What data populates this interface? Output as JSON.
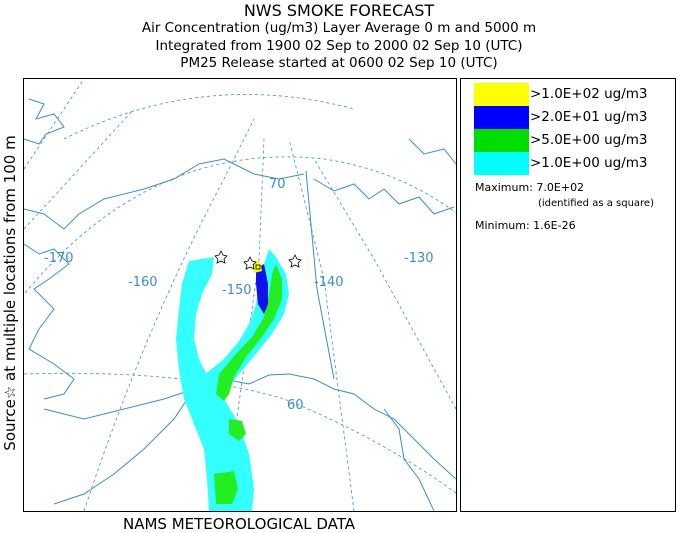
{
  "title": {
    "line1": "NWS SMOKE FORECAST",
    "line2": "Air Concentration (ug/m3) Layer Average    0 m and  5000 m",
    "line3": "Integrated from 1900 02 Sep to 2000 02 Sep 10 (UTC)",
    "line4": "PM25 Release started at 0600 02 Sep 10 (UTC)"
  },
  "side_label": "Source☆ at multiple locations  from  100 m",
  "footer": "NAMS METEOROLOGICAL DATA",
  "map": {
    "longitude_labels": [
      "-170",
      "-160",
      "-150",
      "-140",
      "-130"
    ],
    "latitude_labels": [
      "70",
      "60"
    ],
    "colors": {
      "coast": "#3b8fc7",
      "graticule": "#3b8fc7",
      "conc_1": "#33ffff",
      "conc_5": "#22ee22",
      "conc_20": "#1111ee",
      "conc_100": "#ffff00"
    },
    "source_icon": "star-icon"
  },
  "legend": {
    "items": [
      {
        "label": ">1.0E+02 ug/m3",
        "color": "#ffff00"
      },
      {
        "label": ">2.0E+01 ug/m3",
        "color": "#0000ff"
      },
      {
        "label": ">5.0E+00 ug/m3",
        "color": "#00dd00"
      },
      {
        "label": ">1.0E+00 ug/m3",
        "color": "#00ffff"
      }
    ],
    "maximum": "Maximum: 7.0E+02",
    "maximum_note": "(identified as a square)",
    "minimum": "Minimum: 1.6E-26"
  }
}
